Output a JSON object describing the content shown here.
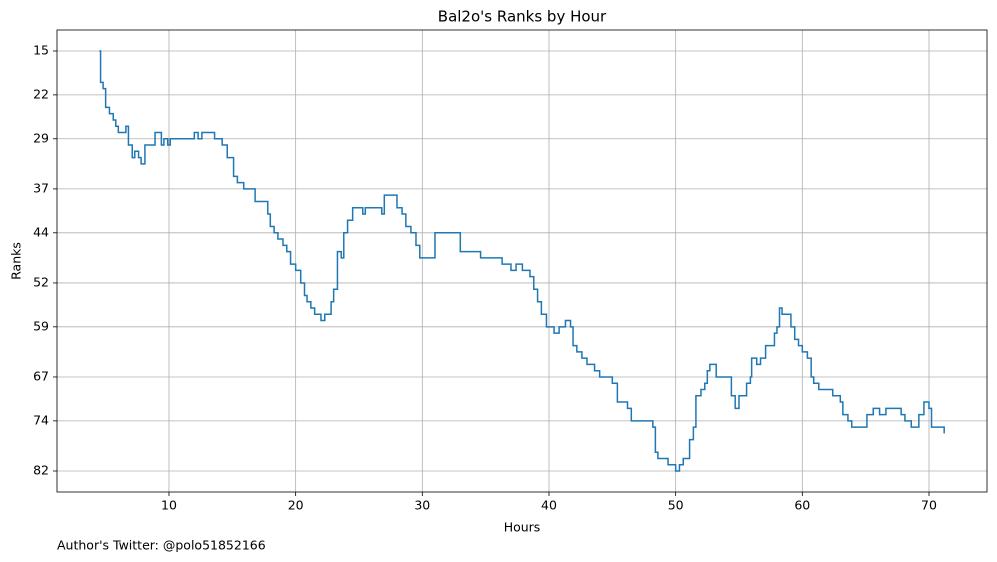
{
  "chart_data": {
    "type": "line",
    "drawstyle": "steps-post",
    "title": "Bal2o's Ranks by Hour",
    "xlabel": "Hours",
    "ylabel": "Ranks",
    "color": "#1f77b4",
    "grid": true,
    "invert_y": true,
    "xlim": [
      1.16,
      74.58
    ],
    "ylim": [
      11.65,
      85.35
    ],
    "xticks": [
      10,
      20,
      30,
      40,
      50,
      60,
      70
    ],
    "yticks": [
      15,
      22,
      29,
      37,
      44,
      52,
      59,
      67,
      74,
      82
    ],
    "x": [
      4.5,
      4.6,
      4.8,
      5.0,
      5.3,
      5.6,
      5.8,
      6.0,
      6.6,
      6.8,
      7.1,
      7.3,
      7.6,
      7.8,
      8.1,
      8.9,
      9.4,
      9.6,
      9.9,
      10.1,
      12.0,
      12.3,
      12.6,
      13.6,
      14.2,
      14.6,
      15.1,
      15.4,
      15.9,
      16.8,
      17.8,
      18.0,
      18.3,
      18.6,
      19.0,
      19.3,
      19.6,
      20.0,
      20.4,
      20.7,
      20.9,
      21.2,
      21.5,
      22.0,
      22.3,
      22.8,
      23.0,
      23.3,
      23.6,
      23.8,
      24.1,
      24.5,
      25.3,
      25.5,
      26.8,
      27.0,
      28.0,
      28.4,
      28.7,
      29.1,
      29.5,
      29.8,
      31.0,
      33.0,
      34.6,
      36.3,
      37.0,
      37.4,
      37.9,
      38.5,
      38.8,
      39.1,
      39.4,
      39.8,
      40.4,
      40.8,
      41.3,
      41.7,
      41.9,
      42.2,
      42.6,
      43.0,
      43.6,
      44.0,
      45.0,
      45.4,
      46.2,
      46.5,
      48.2,
      48.4,
      48.6,
      49.4,
      50.0,
      50.3,
      50.6,
      51.1,
      51.4,
      51.6,
      52.0,
      52.3,
      52.5,
      52.7,
      53.2,
      54.4,
      54.7,
      55.0,
      55.6,
      55.9,
      56.0,
      56.4,
      56.7,
      57.1,
      57.8,
      58.0,
      58.2,
      58.4,
      59.1,
      59.4,
      59.7,
      60.0,
      60.4,
      60.7,
      60.9,
      61.3,
      62.4,
      63.0,
      63.2,
      63.6,
      63.9,
      65.1,
      65.6,
      66.1,
      66.6,
      67.8,
      68.1,
      68.6,
      69.2,
      69.6,
      70.0,
      70.2,
      71.2
    ],
    "values": [
      15,
      20,
      21,
      24,
      25,
      26,
      27,
      28,
      27,
      30,
      32,
      31,
      32,
      33,
      30,
      28,
      30,
      29,
      30,
      29,
      28,
      29,
      28,
      29,
      30,
      32,
      35,
      36,
      37,
      39,
      41,
      43,
      44,
      45,
      46,
      47,
      49,
      50,
      52,
      54,
      55,
      56,
      57,
      58,
      57,
      55,
      53,
      47,
      48,
      44,
      42,
      40,
      41,
      40,
      41,
      38,
      40,
      41,
      43,
      44,
      46,
      48,
      44,
      47,
      48,
      49,
      50,
      49,
      50,
      51,
      53,
      55,
      57,
      59,
      60,
      59,
      58,
      59,
      62,
      63,
      64,
      65,
      66,
      67,
      68,
      71,
      72,
      74,
      75,
      79,
      80,
      81,
      82,
      81,
      80,
      77,
      75,
      70,
      69,
      68,
      66,
      65,
      67,
      70,
      72,
      70,
      68,
      67,
      64,
      65,
      64,
      62,
      60,
      59,
      56,
      57,
      59,
      61,
      62,
      63,
      64,
      67,
      68,
      69,
      70,
      71,
      73,
      74,
      75,
      73,
      72,
      73,
      72,
      73,
      74,
      75,
      73,
      71,
      72,
      75,
      76
    ]
  },
  "footer": "Author's Twitter: @polo51852166"
}
